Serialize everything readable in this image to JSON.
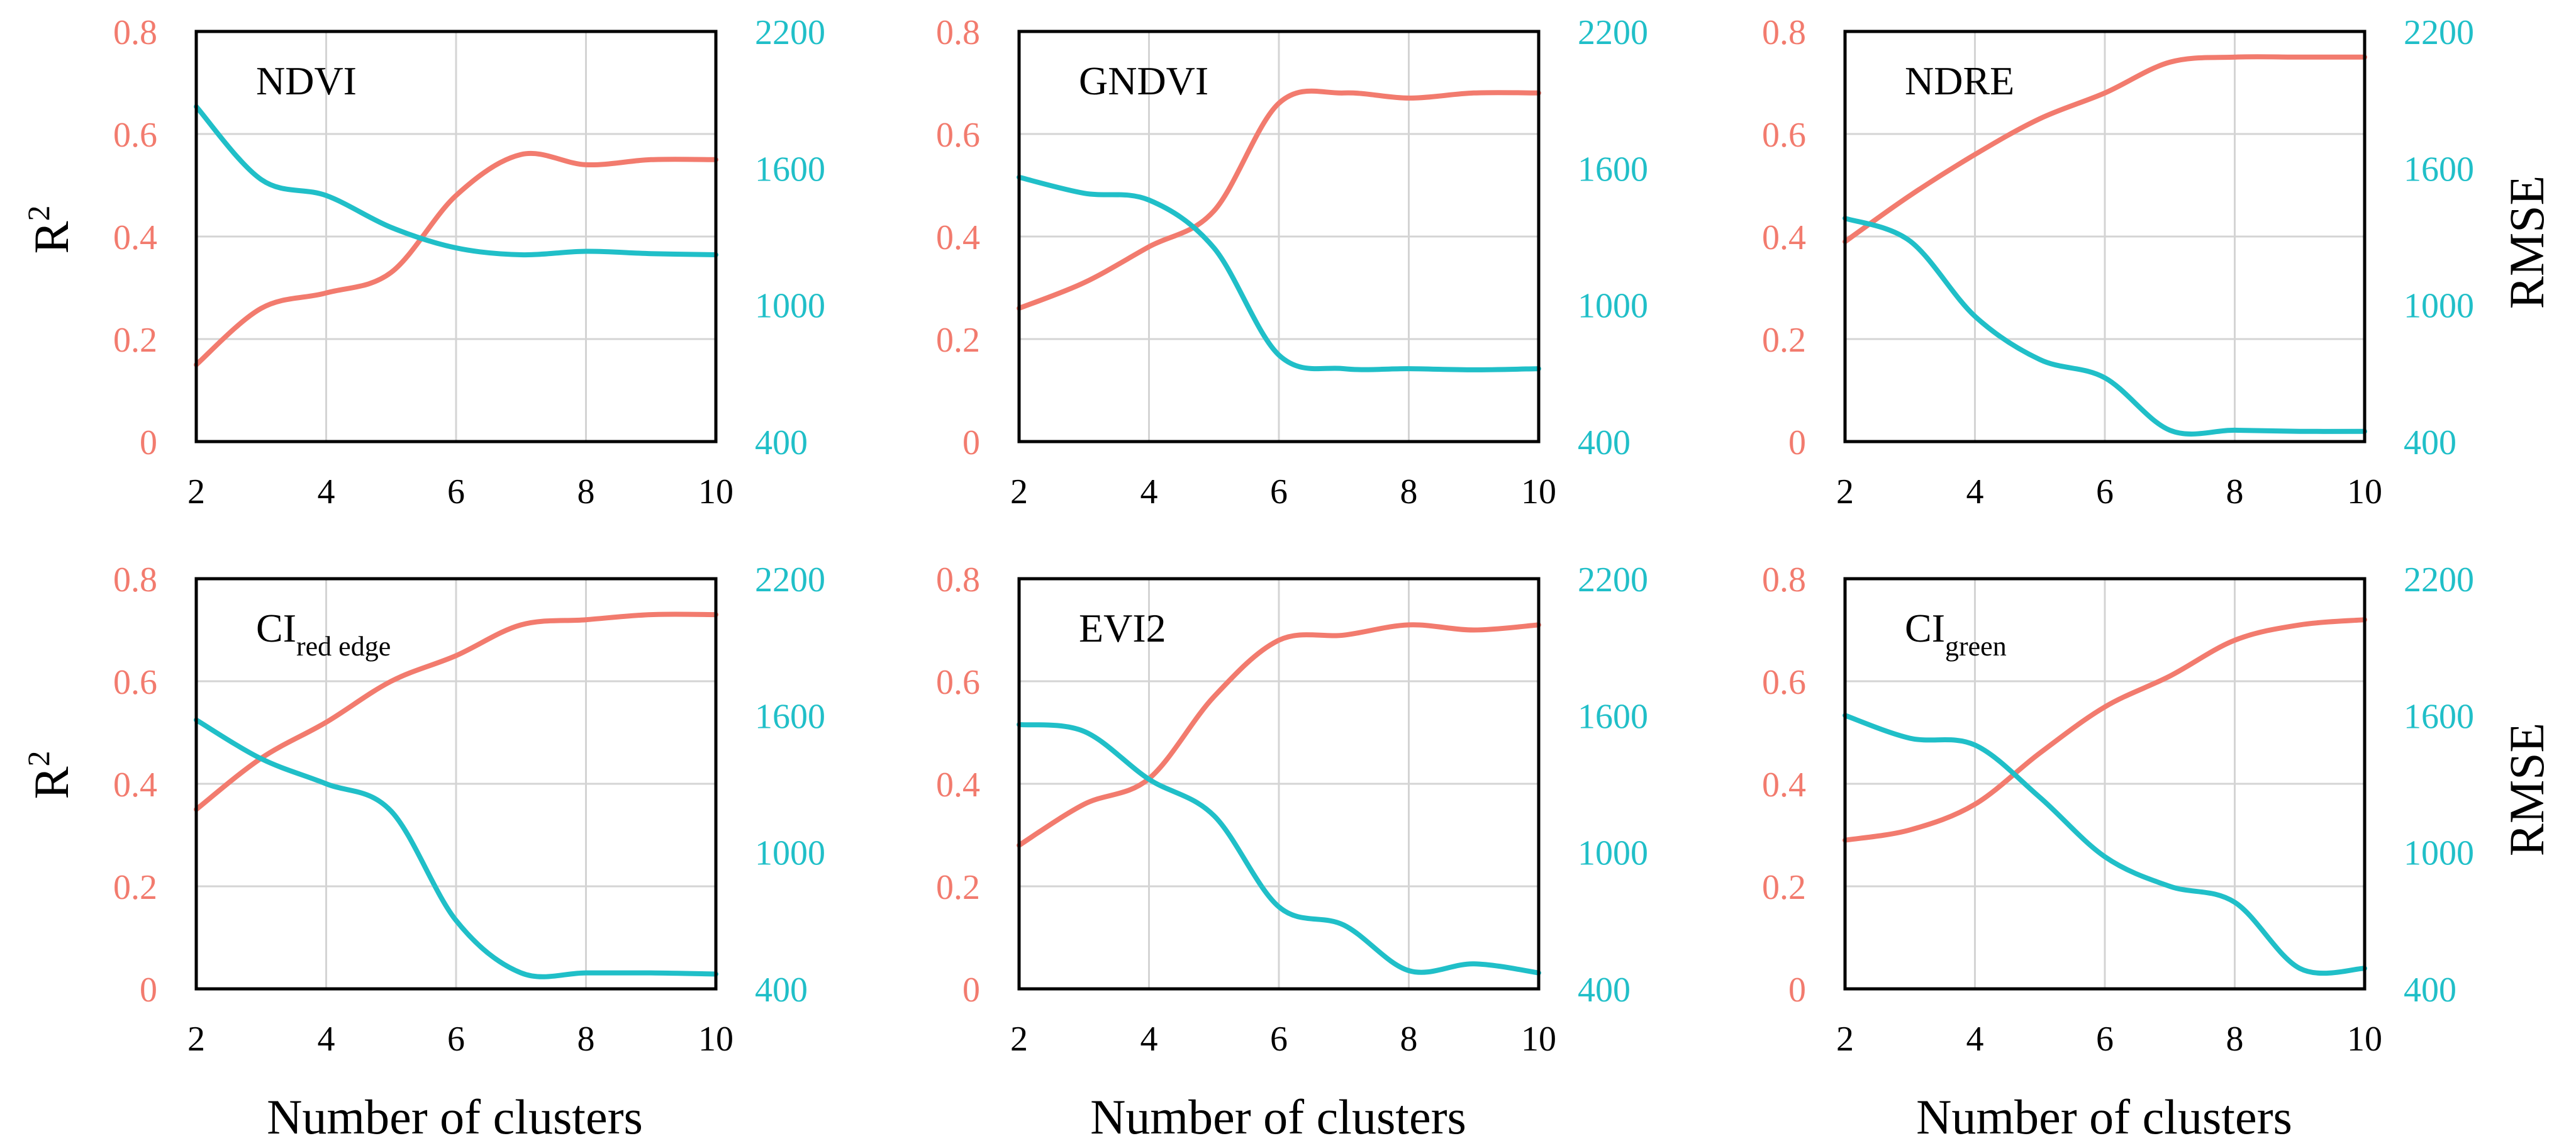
{
  "chart_data": [
    {
      "type": "line",
      "title": "NDVI",
      "x": [
        2,
        3,
        4,
        5,
        6,
        7,
        8,
        9,
        10
      ],
      "series": [
        {
          "axis": "left",
          "color": "#f27b6e",
          "values": [
            0.15,
            0.26,
            0.29,
            0.33,
            0.48,
            0.56,
            0.54,
            0.55,
            0.55
          ]
        },
        {
          "axis": "right",
          "color": "#20bfc8",
          "values": [
            1870,
            1550,
            1480,
            1340,
            1250,
            1220,
            1235,
            1225,
            1220
          ]
        }
      ]
    },
    {
      "type": "line",
      "title": "GNDVI",
      "x": [
        2,
        3,
        4,
        5,
        6,
        7,
        8,
        9,
        10
      ],
      "series": [
        {
          "axis": "left",
          "color": "#f27b6e",
          "values": [
            0.26,
            0.31,
            0.38,
            0.45,
            0.66,
            0.68,
            0.67,
            0.68,
            0.68
          ]
        },
        {
          "axis": "right",
          "color": "#20bfc8",
          "values": [
            1560,
            1490,
            1460,
            1250,
            780,
            720,
            720,
            715,
            720
          ]
        }
      ]
    },
    {
      "type": "line",
      "title": "NDRE",
      "x": [
        2,
        3,
        4,
        5,
        6,
        7,
        8,
        9,
        10
      ],
      "series": [
        {
          "axis": "left",
          "color": "#f27b6e",
          "values": [
            0.39,
            0.48,
            0.56,
            0.63,
            0.68,
            0.74,
            0.75,
            0.75,
            0.75
          ]
        },
        {
          "axis": "right",
          "color": "#20bfc8",
          "values": [
            1380,
            1280,
            950,
            760,
            680,
            450,
            450,
            445,
            445
          ]
        }
      ]
    },
    {
      "type": "line",
      "title": "CI",
      "title_subscript": "red edge",
      "x": [
        2,
        3,
        4,
        5,
        6,
        7,
        8,
        9,
        10
      ],
      "series": [
        {
          "axis": "left",
          "color": "#f27b6e",
          "values": [
            0.35,
            0.45,
            0.52,
            0.6,
            0.65,
            0.71,
            0.72,
            0.73,
            0.73
          ]
        },
        {
          "axis": "right",
          "color": "#20bfc8",
          "values": [
            1580,
            1410,
            1300,
            1180,
            700,
            470,
            470,
            470,
            465
          ]
        }
      ]
    },
    {
      "type": "line",
      "title": "EVI2",
      "x": [
        2,
        3,
        4,
        5,
        6,
        7,
        8,
        9,
        10
      ],
      "series": [
        {
          "axis": "left",
          "color": "#f27b6e",
          "values": [
            0.28,
            0.36,
            0.41,
            0.57,
            0.68,
            0.69,
            0.71,
            0.7,
            0.71
          ]
        },
        {
          "axis": "right",
          "color": "#20bfc8",
          "values": [
            1560,
            1530,
            1320,
            1160,
            760,
            680,
            480,
            510,
            470
          ]
        }
      ]
    },
    {
      "type": "line",
      "title": "CI",
      "title_subscript": "green",
      "x": [
        2,
        3,
        4,
        5,
        6,
        7,
        8,
        9,
        10
      ],
      "series": [
        {
          "axis": "left",
          "color": "#f27b6e",
          "values": [
            0.29,
            0.31,
            0.36,
            0.46,
            0.55,
            0.61,
            0.68,
            0.71,
            0.72
          ]
        },
        {
          "axis": "right",
          "color": "#20bfc8",
          "values": [
            1600,
            1500,
            1470,
            1240,
            980,
            850,
            780,
            490,
            490
          ]
        }
      ]
    }
  ],
  "axes": {
    "left_ticks": [
      "0",
      "0.2",
      "0.4",
      "0.6",
      "0.8"
    ],
    "left_ylim": [
      0,
      0.8
    ],
    "right_ticks": [
      "400",
      "1000",
      "1600",
      "2200"
    ],
    "right_ylim": [
      400,
      2200
    ],
    "x_ticks": [
      "2",
      "4",
      "6",
      "8",
      "10"
    ],
    "xlim": [
      2,
      10
    ],
    "grid": true,
    "left_ylabel_base": "R",
    "left_ylabel_sup": "2",
    "right_ylabel": "RMSE",
    "xlabel": "Number of clusters"
  },
  "colors": {
    "r2": "#f27b6e",
    "rmse": "#20bfc8"
  }
}
